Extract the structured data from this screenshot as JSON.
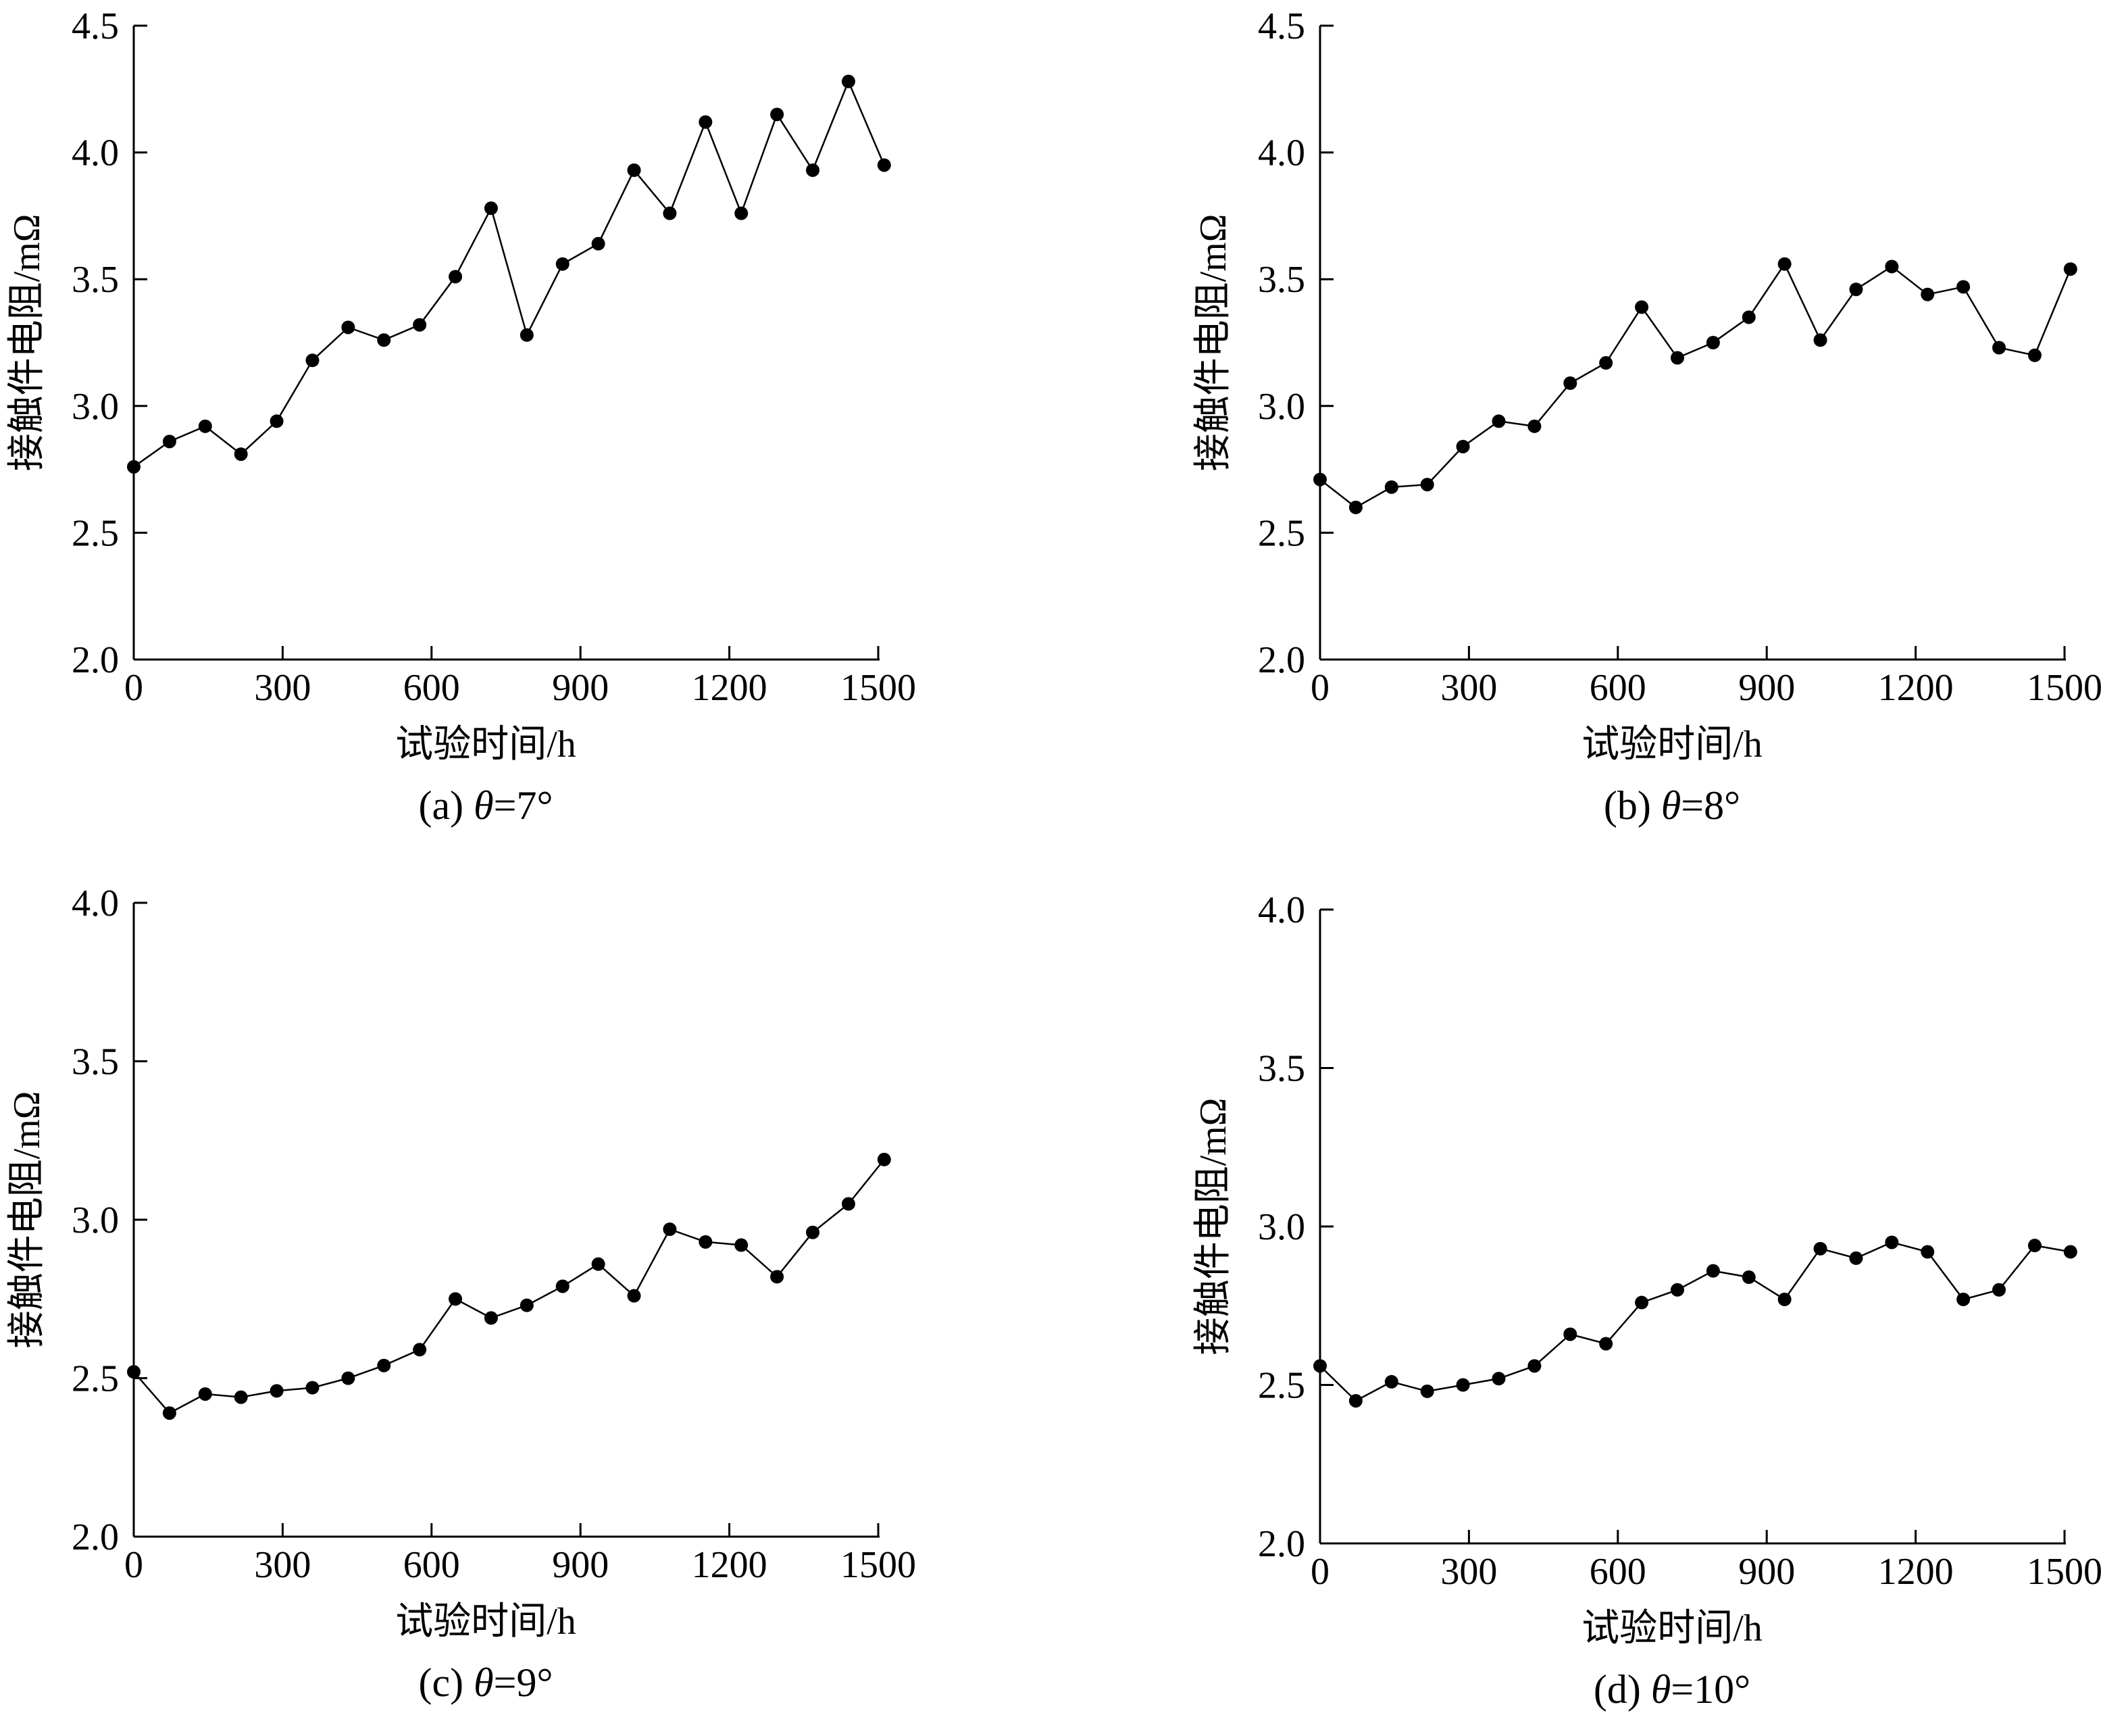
{
  "chart_data": [
    {
      "type": "line",
      "caption_prefix": "(a)",
      "caption_var": "θ",
      "caption_value": "=7°",
      "xlabel": "试验时间/h",
      "ylabel": "接触件电阻/mΩ",
      "xlim": [
        0,
        1500
      ],
      "ylim": [
        2.0,
        4.5
      ],
      "xticks": [
        0,
        300,
        600,
        900,
        1200,
        1500
      ],
      "xtick_labels": [
        "0",
        "300",
        "600",
        "900",
        "1200",
        "1500"
      ],
      "yticks": [
        2.0,
        2.5,
        3.0,
        3.5,
        4.0,
        4.5
      ],
      "ytick_labels": [
        "2.0",
        "2.5",
        "3.0",
        "3.5",
        "4.0",
        "4.5"
      ],
      "x": [
        0,
        72,
        144,
        216,
        288,
        360,
        432,
        504,
        576,
        648,
        720,
        792,
        864,
        936,
        1008,
        1080,
        1152,
        1224,
        1296,
        1368,
        1440,
        1512
      ],
      "y": [
        2.76,
        2.86,
        2.92,
        2.81,
        2.94,
        3.18,
        3.31,
        3.26,
        3.32,
        3.51,
        3.78,
        3.28,
        3.56,
        3.64,
        3.93,
        3.76,
        4.12,
        3.76,
        4.15,
        3.93,
        4.28,
        3.95
      ]
    },
    {
      "type": "line",
      "caption_prefix": "(b)",
      "caption_var": "θ",
      "caption_value": "=8°",
      "xlabel": "试验时间/h",
      "ylabel": "接触件电阻/mΩ",
      "xlim": [
        0,
        1500
      ],
      "ylim": [
        2.0,
        4.5
      ],
      "xticks": [
        0,
        300,
        600,
        900,
        1200,
        1500
      ],
      "xtick_labels": [
        "0",
        "300",
        "600",
        "900",
        "1200",
        "1500"
      ],
      "yticks": [
        2.0,
        2.5,
        3.0,
        3.5,
        4.0,
        4.5
      ],
      "ytick_labels": [
        "2.0",
        "2.5",
        "3.0",
        "3.5",
        "4.0",
        "4.5"
      ],
      "x": [
        0,
        72,
        144,
        216,
        288,
        360,
        432,
        504,
        576,
        648,
        720,
        792,
        864,
        936,
        1008,
        1080,
        1152,
        1224,
        1296,
        1368,
        1440,
        1512
      ],
      "y": [
        2.71,
        2.6,
        2.68,
        2.69,
        2.84,
        2.94,
        2.92,
        3.09,
        3.17,
        3.39,
        3.19,
        3.25,
        3.35,
        3.56,
        3.26,
        3.46,
        3.55,
        3.44,
        3.47,
        3.23,
        3.2,
        3.54
      ]
    },
    {
      "type": "line",
      "caption_prefix": "(c)",
      "caption_var": "θ",
      "caption_value": "=9°",
      "xlabel": "试验时间/h",
      "ylabel": "接触件电阻/mΩ",
      "xlim": [
        0,
        1500
      ],
      "ylim": [
        2.0,
        4.0
      ],
      "xticks": [
        0,
        300,
        600,
        900,
        1200,
        1500
      ],
      "xtick_labels": [
        "0",
        "300",
        "600",
        "900",
        "1200",
        "1500"
      ],
      "yticks": [
        2.0,
        2.5,
        3.0,
        3.5,
        4.0
      ],
      "ytick_labels": [
        "2.0",
        "2.5",
        "3.0",
        "3.5",
        "4.0"
      ],
      "x": [
        0,
        72,
        144,
        216,
        288,
        360,
        432,
        504,
        576,
        648,
        720,
        792,
        864,
        936,
        1008,
        1080,
        1152,
        1224,
        1296,
        1368,
        1440,
        1512
      ],
      "y": [
        2.52,
        2.39,
        2.45,
        2.44,
        2.46,
        2.47,
        2.5,
        2.54,
        2.59,
        2.75,
        2.69,
        2.73,
        2.79,
        2.86,
        2.76,
        2.97,
        2.93,
        2.92,
        2.82,
        2.96,
        3.05,
        3.19
      ]
    },
    {
      "type": "line",
      "caption_prefix": "(d)",
      "caption_var": "θ",
      "caption_value": "=10°",
      "xlabel": "试验时间/h",
      "ylabel": "接触件电阻/mΩ",
      "xlim": [
        0,
        1500
      ],
      "ylim": [
        2.0,
        4.0
      ],
      "xticks": [
        0,
        300,
        600,
        900,
        1200,
        1500
      ],
      "xtick_labels": [
        "0",
        "300",
        "600",
        "900",
        "1200",
        "1500"
      ],
      "yticks": [
        2.0,
        2.5,
        3.0,
        3.5,
        4.0
      ],
      "ytick_labels": [
        "2.0",
        "2.5",
        "3.0",
        "3.5",
        "4.0"
      ],
      "x": [
        0,
        72,
        144,
        216,
        288,
        360,
        432,
        504,
        576,
        648,
        720,
        792,
        864,
        936,
        1008,
        1080,
        1152,
        1224,
        1296,
        1368,
        1440,
        1512
      ],
      "y": [
        2.56,
        2.45,
        2.51,
        2.48,
        2.5,
        2.52,
        2.56,
        2.66,
        2.63,
        2.76,
        2.8,
        2.86,
        2.84,
        2.77,
        2.93,
        2.9,
        2.95,
        2.92,
        2.77,
        2.8,
        2.94,
        2.92
      ]
    }
  ]
}
